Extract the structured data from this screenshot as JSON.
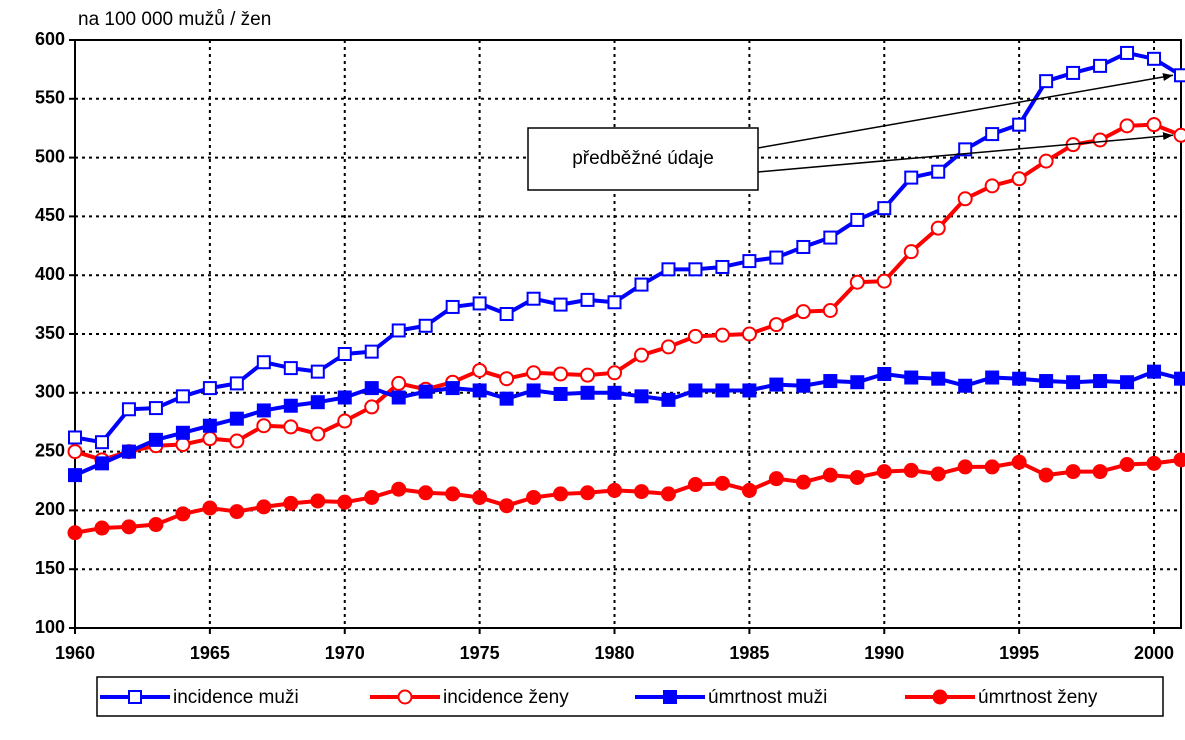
{
  "chart_data": {
    "type": "line",
    "y_label": "na 100 000 mužů / žen",
    "annotation": "předběžné údaje",
    "x": [
      1960,
      1961,
      1962,
      1963,
      1964,
      1965,
      1966,
      1967,
      1968,
      1969,
      1970,
      1971,
      1972,
      1973,
      1974,
      1975,
      1976,
      1977,
      1978,
      1979,
      1980,
      1981,
      1982,
      1983,
      1984,
      1985,
      1986,
      1987,
      1988,
      1989,
      1990,
      1991,
      1992,
      1993,
      1994,
      1995,
      1996,
      1997,
      1998,
      1999,
      2000,
      2001
    ],
    "xlim": [
      1960,
      2001
    ],
    "xticks": [
      1960,
      1965,
      1970,
      1975,
      1980,
      1985,
      1990,
      1995,
      2000
    ],
    "ylim": [
      100,
      600
    ],
    "yticks": [
      100,
      150,
      200,
      250,
      300,
      350,
      400,
      450,
      500,
      550,
      600
    ],
    "grid": true,
    "legend": "bottom",
    "series": [
      {
        "name": "incidence muži",
        "color": "#0000ff",
        "marker": "square-open",
        "values": [
          262,
          258,
          286,
          287,
          297,
          304,
          308,
          326,
          321,
          318,
          333,
          335,
          353,
          357,
          373,
          376,
          367,
          380,
          375,
          379,
          377,
          392,
          405,
          405,
          407,
          412,
          415,
          424,
          432,
          447,
          457,
          483,
          488,
          507,
          520,
          528,
          565,
          572,
          578,
          589,
          584,
          570
        ]
      },
      {
        "name": "incidence ženy",
        "color": "#ff0000",
        "marker": "circle-open",
        "values": [
          250,
          243,
          250,
          255,
          256,
          261,
          259,
          272,
          271,
          265,
          276,
          288,
          308,
          303,
          309,
          319,
          312,
          317,
          316,
          315,
          317,
          332,
          339,
          348,
          349,
          350,
          358,
          369,
          370,
          394,
          395,
          420,
          440,
          465,
          476,
          482,
          497,
          511,
          515,
          527,
          528,
          519
        ]
      },
      {
        "name": "úmrtnost muži",
        "color": "#0000ff",
        "marker": "square-filled",
        "values": [
          230,
          240,
          250,
          260,
          266,
          272,
          278,
          285,
          289,
          292,
          296,
          304,
          296,
          301,
          304,
          302,
          295,
          302,
          299,
          300,
          300,
          297,
          294,
          302,
          302,
          302,
          307,
          306,
          310,
          309,
          316,
          313,
          312,
          306,
          313,
          312,
          310,
          309,
          310,
          309,
          318,
          312
        ]
      },
      {
        "name": "úmrtnost ženy",
        "color": "#ff0000",
        "marker": "circle-filled",
        "values": [
          181,
          185,
          186,
          188,
          197,
          202,
          199,
          203,
          206,
          208,
          207,
          211,
          218,
          215,
          214,
          211,
          204,
          211,
          214,
          215,
          217,
          216,
          214,
          222,
          223,
          217,
          227,
          224,
          230,
          228,
          233,
          234,
          231,
          237,
          237,
          241,
          230,
          233,
          233,
          239,
          240,
          243
        ]
      }
    ]
  }
}
